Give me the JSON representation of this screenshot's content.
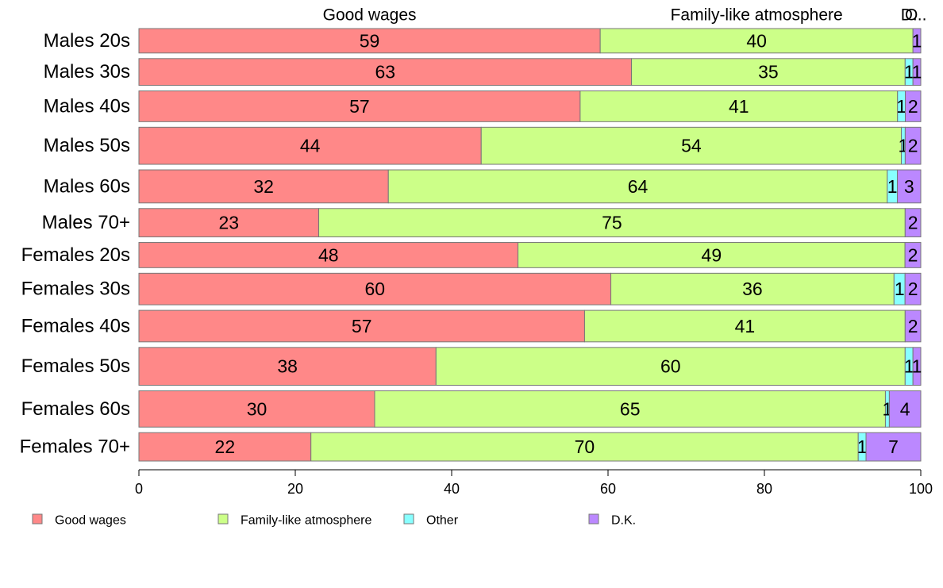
{
  "chart_data": {
    "type": "bar",
    "orientation": "horizontal",
    "stacked": true,
    "categories": [
      "Males 20s",
      "Males 30s",
      "Males 40s",
      "Males 50s",
      "Males 60s",
      "Males 70+",
      "Females 20s",
      "Females 30s",
      "Females 40s",
      "Females 50s",
      "Females 60s",
      "Females 70+"
    ],
    "category_weights": [
      31,
      34,
      39,
      47,
      42,
      36,
      32,
      40,
      40,
      48,
      46,
      36
    ],
    "series": [
      {
        "name": "Good wages",
        "color": "#ff8888",
        "values": [
          59,
          63,
          57,
          44,
          32,
          23,
          48,
          60,
          57,
          38,
          30,
          22
        ],
        "labels": [
          "59",
          "63",
          "57",
          "44",
          "32",
          "23",
          "48",
          "60",
          "57",
          "38",
          "30",
          "22"
        ]
      },
      {
        "name": "Family-like atmosphere",
        "color": "#ccff88",
        "values": [
          40,
          35,
          41,
          54,
          64,
          75,
          49,
          36,
          41,
          60,
          65,
          70
        ],
        "labels": [
          "40",
          "35",
          "41",
          "54",
          "64",
          "75",
          "49",
          "36",
          "41",
          "60",
          "65",
          "70"
        ]
      },
      {
        "name": "Other",
        "color": "#88ffff",
        "values": [
          0,
          1,
          1,
          0.5,
          1.3,
          0,
          0,
          1.4,
          0,
          1,
          0.5,
          1
        ],
        "labels": [
          "",
          "1",
          "1",
          "1",
          "1",
          "",
          "",
          "1",
          "",
          "1",
          "1",
          "1"
        ]
      },
      {
        "name": "D.K.",
        "color": "#bb88ff",
        "values": [
          1,
          1,
          2,
          2,
          3,
          2,
          2,
          2,
          2,
          1,
          4,
          7
        ],
        "labels": [
          "1",
          "1",
          "2",
          "2",
          "3",
          "2",
          "2",
          "2",
          "2",
          "1",
          "4",
          "7"
        ]
      }
    ],
    "top_labels": [
      "Good wages",
      "Family-like atmosphere",
      "O",
      "D..."
    ],
    "xlim": [
      0,
      100
    ],
    "xticks": [
      "0",
      "20",
      "40",
      "60",
      "80",
      "100"
    ],
    "grid": false,
    "legend": [
      "Good wages",
      "Family-like atmosphere",
      "Other",
      "D.K."
    ],
    "legend_position": "bottom"
  }
}
